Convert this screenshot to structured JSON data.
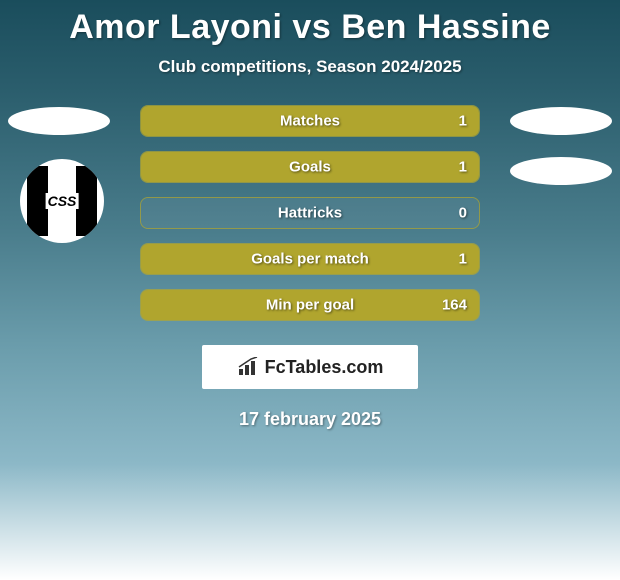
{
  "header": {
    "title": "Amor Layoni vs Ben Hassine",
    "subtitle": "Club competitions, Season 2024/2025"
  },
  "club_badge_text": "CSS",
  "stats": [
    {
      "label": "Matches",
      "value": "1",
      "fill_pct": 100,
      "fill_color": "#b0a52e"
    },
    {
      "label": "Goals",
      "value": "1",
      "fill_pct": 100,
      "fill_color": "#b0a52e"
    },
    {
      "label": "Hattricks",
      "value": "0",
      "fill_pct": 0,
      "fill_color": "#b0a52e"
    },
    {
      "label": "Goals per match",
      "value": "1",
      "fill_pct": 100,
      "fill_color": "#b0a52e"
    },
    {
      "label": "Min per goal",
      "value": "164",
      "fill_pct": 100,
      "fill_color": "#b0a52e"
    }
  ],
  "brand": {
    "text": "FcTables.com"
  },
  "date": "17 february 2025",
  "colors": {
    "bar_border": "rgba(176,165,46,0.7)"
  }
}
